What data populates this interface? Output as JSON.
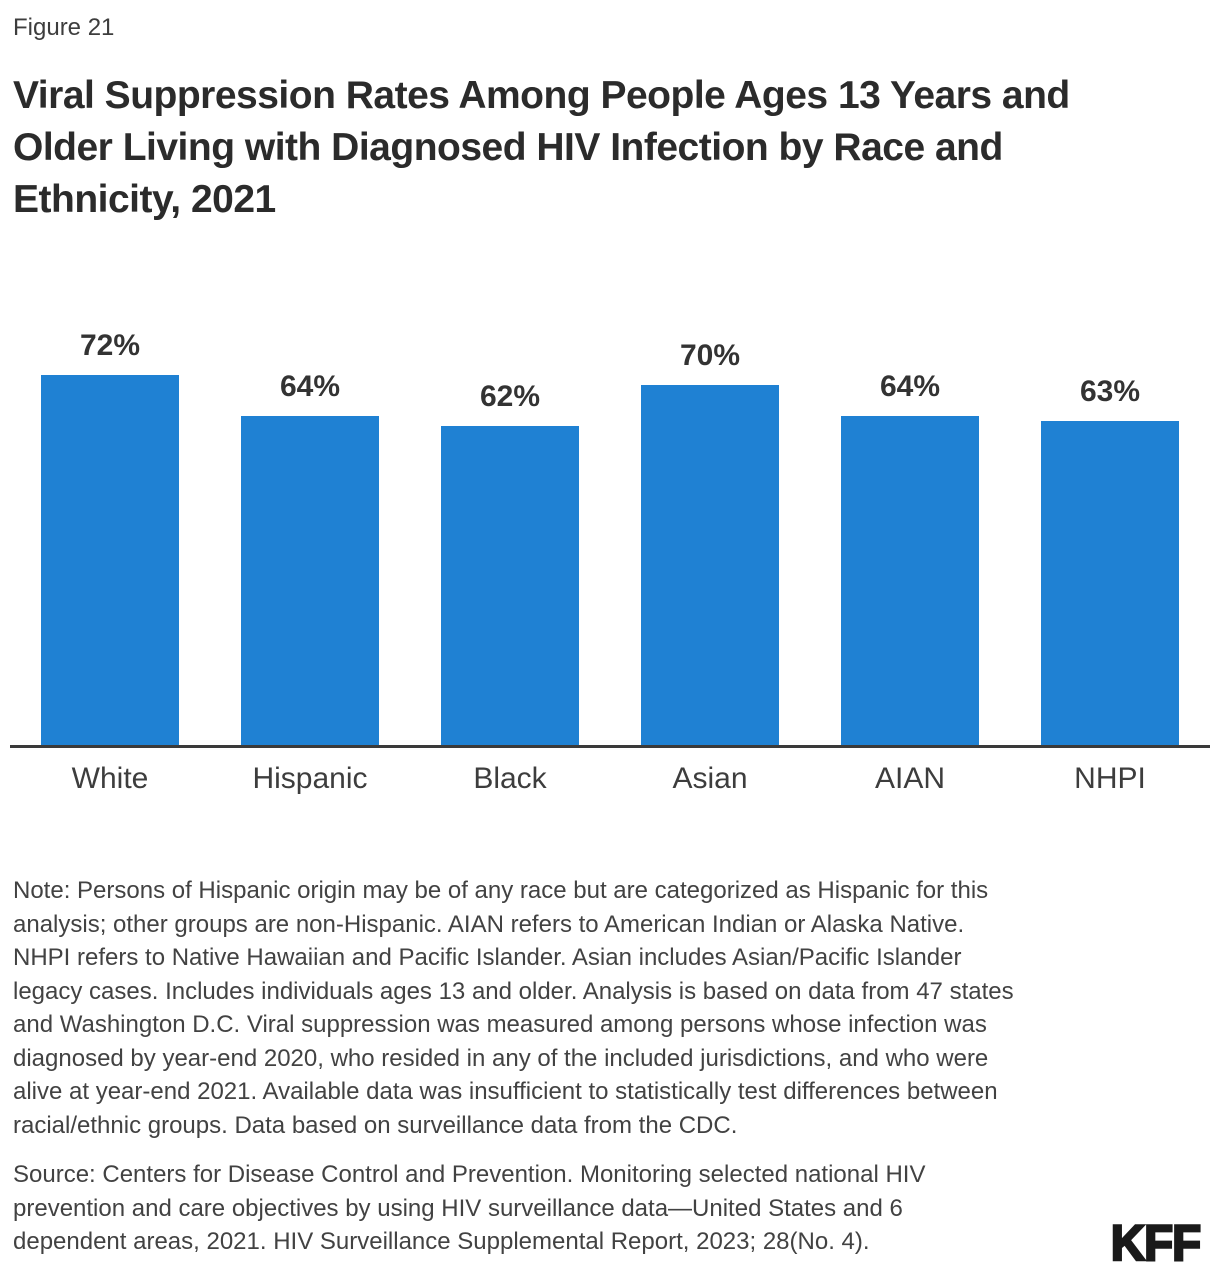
{
  "header": {
    "figure_label": "Figure 21",
    "title_lines": [
      "Viral Suppression Rates Among People Ages 13 Years and",
      "Older Living with Diagnosed HIV Infection by Race and",
      "Ethnicity, 2021"
    ]
  },
  "chart_data": {
    "type": "bar",
    "title": "Viral Suppression Rates Among People Ages 13 Years and Older Living with Diagnosed HIV Infection by Race and Ethnicity, 2021",
    "categories": [
      "White",
      "Hispanic",
      "Black",
      "Asian",
      "AIAN",
      "NHPI"
    ],
    "values": [
      72,
      64,
      62,
      70,
      64,
      63
    ],
    "value_labels": [
      "72%",
      "64%",
      "62%",
      "70%",
      "64%",
      "63%"
    ],
    "unit": "percent",
    "xlabel": "",
    "ylabel": "",
    "ylim": [
      0,
      80
    ],
    "grid": false,
    "legend": "none",
    "bar_color": "#1F81D3",
    "axis_color": "#3A3A3A"
  },
  "footer": {
    "note_lines": [
      "Note: Persons of Hispanic origin may be of any race but are categorized as Hispanic for this",
      "analysis; other groups are non-Hispanic. AIAN refers to American Indian or Alaska Native.",
      "NHPI refers to Native Hawaiian and Pacific Islander. Asian includes Asian/Pacific Islander",
      "legacy cases. Includes individuals ages 13 and older. Analysis is based on data from 47 states",
      "and Washington D.C. Viral suppression was measured among persons whose infection was",
      "diagnosed by year-end 2020, who resided in any of the included jurisdictions, and who were",
      "alive at year-end 2021. Available data was insufficient to statistically test differences between",
      "racial/ethnic groups. Data based on surveillance data from the CDC."
    ],
    "source_lines": [
      "Source: Centers for Disease Control and Prevention. Monitoring selected national HIV",
      "prevention and care objectives by using HIV surveillance data—United States and 6",
      "dependent areas, 2021. HIV Surveillance Supplemental Report, 2023; 28(No. 4)."
    ],
    "logo_text": "KFF"
  }
}
